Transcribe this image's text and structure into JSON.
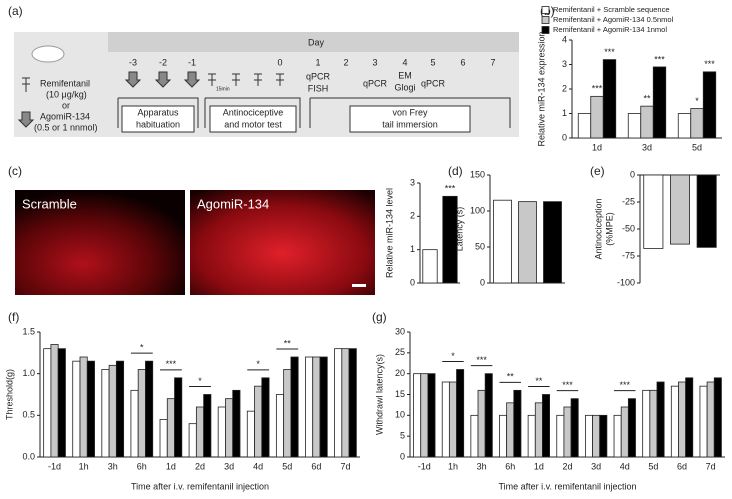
{
  "panel_labels": [
    "(a)",
    "(b)",
    "(c)",
    "(d)",
    "(e)",
    "(f)",
    "(g)"
  ],
  "diagram": {
    "day_title": "Day",
    "days": [
      "-3",
      "-2",
      "-1",
      "0",
      "1",
      "2",
      "3",
      "4",
      "5",
      "6",
      "7"
    ],
    "drug_lines": [
      "Remifentanil",
      "(10 μg/kg)",
      "or",
      "AgomiR-134",
      "(0.5 or 1 nnmol)"
    ],
    "interval": "15min",
    "events": [
      "qPCR",
      "FISH",
      "qPCR",
      "EM",
      "Glogi",
      "qPCR"
    ],
    "boxes": [
      [
        "Apparatus",
        "habituation"
      ],
      [
        "Antinociceptive",
        "and motor test"
      ],
      [
        "von Frey",
        "tail immersion"
      ]
    ]
  },
  "images": [
    "Scramble",
    "AgomiR-134"
  ],
  "chart_data": [
    {
      "type": "bar",
      "ylabel": "Relative miR-134 expression",
      "ylim": [
        0,
        4
      ],
      "yticks": [
        0,
        1,
        2,
        3,
        4
      ],
      "categories": [
        "1d",
        "3d",
        "5d"
      ],
      "series": [
        {
          "name": "Remifentanil + Scramble sequence",
          "color": "#ffffff",
          "values": [
            1,
            1,
            1
          ]
        },
        {
          "name": "Remifentanil + AgomiR-134 0.5nmol",
          "color": "#c8c8c8",
          "values": [
            1.7,
            1.3,
            1.2
          ],
          "significance": [
            "***",
            "**",
            "*"
          ]
        },
        {
          "name": "Remifentanil + AgomiR-134 1nmol",
          "color": "#000000",
          "values": [
            3.2,
            2.9,
            2.7
          ],
          "significance": [
            "***",
            "***",
            "***"
          ]
        }
      ]
    },
    {
      "type": "bar",
      "ylabel": "Relative miR-134 level",
      "ylim": [
        0,
        3
      ],
      "yticks": [
        0,
        1,
        2,
        3
      ],
      "values": [
        1,
        2.6
      ],
      "colors": [
        "#ffffff",
        "#000000"
      ],
      "significance": [
        null,
        "***"
      ]
    },
    {
      "type": "bar",
      "ylabel": "Latency (s)",
      "ylim": [
        0,
        150
      ],
      "yticks": [
        0,
        50,
        100,
        150
      ],
      "values": [
        115,
        113,
        113
      ],
      "colors": [
        "#ffffff",
        "#c8c8c8",
        "#000000"
      ]
    },
    {
      "type": "bar",
      "ylabel": [
        "Antinociception",
        "(%MPE)"
      ],
      "ylim": [
        -100,
        0
      ],
      "yticks": [
        -100,
        -75,
        -50,
        -25,
        0
      ],
      "values": [
        -68,
        -64,
        -67
      ],
      "colors": [
        "#ffffff",
        "#c8c8c8",
        "#000000"
      ]
    },
    {
      "type": "bar",
      "ylabel": "Threshold(g)",
      "xlabel": "Time after i.v. remifentanil injection",
      "ylim": [
        0,
        1.5
      ],
      "yticks": [
        {
          "value": 0,
          "label": "0.0"
        },
        {
          "value": 0.5,
          "label": "0.5"
        },
        {
          "value": 1,
          "label": "1.0"
        },
        {
          "value": 1.5,
          "label": "1.5"
        }
      ],
      "categories": [
        "-1d",
        "1h",
        "3h",
        "6h",
        "1d",
        "2d",
        "3d",
        "4d",
        "5d",
        "6d",
        "7d"
      ],
      "series": [
        {
          "color": "#ffffff",
          "values": [
            1.3,
            1.15,
            1.05,
            0.8,
            0.45,
            0.4,
            0.6,
            0.55,
            0.75,
            1.2,
            1.3
          ]
        },
        {
          "color": "#c8c8c8",
          "values": [
            1.35,
            1.2,
            1.1,
            1.05,
            0.7,
            0.6,
            0.7,
            0.85,
            1.05,
            1.2,
            1.3
          ]
        },
        {
          "color": "#000000",
          "values": [
            1.3,
            1.15,
            1.15,
            1.15,
            0.95,
            0.75,
            0.8,
            0.95,
            1.2,
            1.2,
            1.3
          ]
        }
      ],
      "significance": [
        null,
        null,
        null,
        "*",
        "***",
        "*",
        null,
        "*",
        "**",
        null,
        null
      ]
    },
    {
      "type": "bar",
      "ylabel": "Withdrawl latency(s)",
      "xlabel": "Time after i.v. remifentanil injection",
      "ylim": [
        0,
        30
      ],
      "yticks": [
        0,
        5,
        10,
        15,
        20,
        25,
        30
      ],
      "categories": [
        "-1d",
        "1h",
        "3h",
        "6h",
        "1d",
        "2d",
        "3d",
        "4d",
        "5d",
        "6d",
        "7d"
      ],
      "series": [
        {
          "color": "#ffffff",
          "values": [
            20,
            18,
            10,
            10,
            10,
            10,
            10,
            10,
            16,
            17,
            17
          ]
        },
        {
          "color": "#c8c8c8",
          "values": [
            20,
            18,
            16,
            13,
            13,
            12,
            10,
            12,
            16,
            18,
            18
          ]
        },
        {
          "color": "#000000",
          "values": [
            20,
            21,
            20,
            16,
            15,
            14,
            10,
            14,
            18,
            19,
            19
          ]
        }
      ],
      "significance": [
        null,
        "*",
        "***",
        "**",
        "**",
        "***",
        null,
        "***",
        null,
        null,
        null
      ]
    }
  ]
}
